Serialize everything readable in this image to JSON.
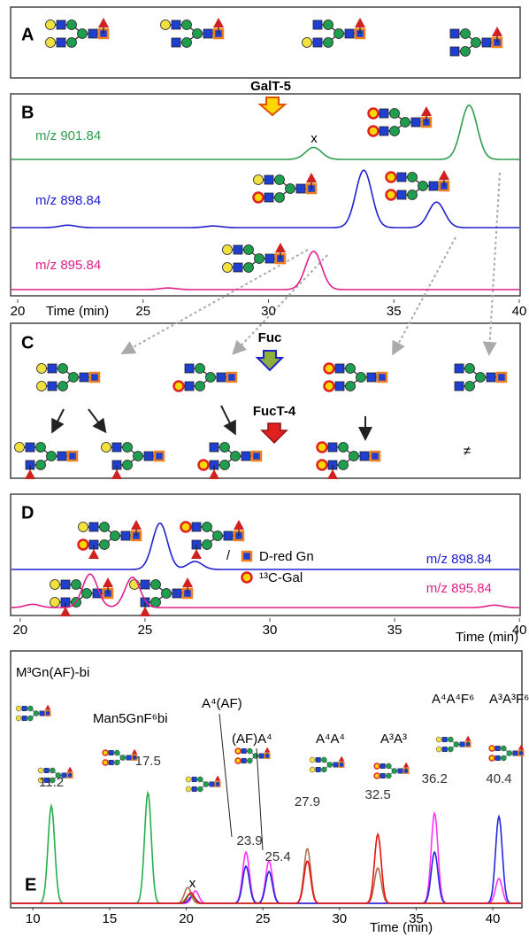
{
  "panel_a": {
    "label": "A",
    "enzyme": "GalT-5"
  },
  "panel_b": {
    "label": "B",
    "xlim": [
      20,
      40
    ],
    "xticks": [
      20,
      25,
      30,
      35,
      40
    ],
    "xlabel": "Time (min)",
    "marker": "x",
    "traces": [
      {
        "name": "m/z 901.84",
        "color": "#2e9e4f",
        "peaks": [
          [
            31.8,
            15
          ],
          [
            38,
            68
          ]
        ]
      },
      {
        "name": "m/z 898.84",
        "color": "#2020d0",
        "peaks": [
          [
            22,
            3
          ],
          [
            27.8,
            2
          ],
          [
            33.8,
            72
          ],
          [
            36.7,
            32
          ]
        ]
      },
      {
        "name": "m/z 895.84",
        "color": "#e0208a",
        "peaks": [
          [
            26,
            2
          ],
          [
            31.8,
            48
          ]
        ]
      }
    ]
  },
  "panel_c": {
    "label": "C",
    "enzyme_1": "Fuc",
    "enzyme_2": "FucT-4",
    "no_reaction": "≠"
  },
  "panel_d": {
    "label": "D",
    "xlim": [
      19.9,
      40.1
    ],
    "xticks": [
      20,
      25,
      30,
      35,
      40
    ],
    "xlabel": "Time (min)",
    "legend": [
      "D-red Gn",
      "¹³C-Gal"
    ],
    "mark": "/",
    "traces": [
      {
        "name": "m/z 898.84",
        "color": "#2020d0",
        "peaks": [
          [
            25.6,
            58
          ],
          [
            27,
            10
          ]
        ]
      },
      {
        "name": "m/z 895.84",
        "color": "#e0208a",
        "peaks": [
          [
            20.5,
            4
          ],
          [
            22.8,
            42
          ],
          [
            24.5,
            38
          ],
          [
            39,
            3
          ]
        ]
      }
    ]
  },
  "panel_e": {
    "label": "E",
    "xlim": [
      8.6,
      41.9
    ],
    "xticks": [
      10,
      15,
      20,
      25,
      30,
      35,
      40
    ],
    "xlabel": "Time (min)",
    "marker": "x",
    "peaks": [
      {
        "name": "M³Gn(AF)-bi",
        "time": 11.2
      },
      {
        "name": "Man5GnF⁶bi",
        "time": 17.5
      },
      {
        "name": "A⁴(AF)",
        "time": 23.9
      },
      {
        "name": "(AF)A⁴",
        "time": 25.4
      },
      {
        "name": "A⁴A⁴",
        "time": 27.9
      },
      {
        "name": "A³A³",
        "time": 32.5
      },
      {
        "name": "A⁴A⁴F⁶",
        "time": 36.2
      },
      {
        "name": "A³A³F⁶",
        "time": 40.4
      }
    ],
    "traces": [
      {
        "color": "#22b04a",
        "peaks": [
          [
            11.2,
            110
          ],
          [
            17.5,
            125
          ],
          [
            20.2,
            10
          ]
        ]
      },
      {
        "color": "#ff33ff",
        "peaks": [
          [
            20.6,
            14
          ],
          [
            23.9,
            58
          ],
          [
            25.4,
            48
          ],
          [
            36.2,
            102
          ],
          [
            40.4,
            28
          ]
        ]
      },
      {
        "color": "#2525e0",
        "peaks": [
          [
            20.4,
            8
          ],
          [
            23.9,
            42
          ],
          [
            25.4,
            36
          ],
          [
            36.2,
            58
          ],
          [
            40.4,
            98
          ]
        ]
      },
      {
        "color": "#b0704a",
        "peaks": [
          [
            20.1,
            18
          ],
          [
            27.9,
            62
          ],
          [
            32.5,
            40
          ]
        ]
      },
      {
        "color": "#e81010",
        "peaks": [
          [
            20.3,
            12
          ],
          [
            27.9,
            48
          ],
          [
            32.5,
            78
          ]
        ]
      }
    ]
  }
}
